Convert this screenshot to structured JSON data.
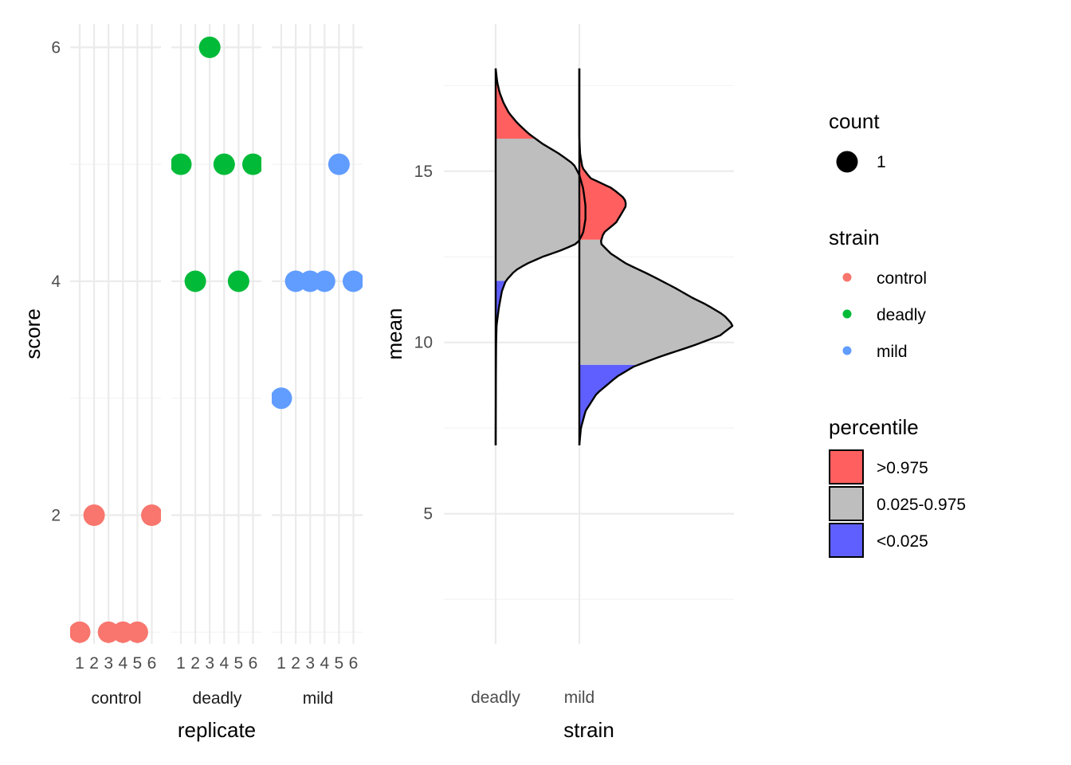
{
  "chart_data": [
    {
      "type": "scatter",
      "xlabel": "replicate",
      "ylabel": "score",
      "facets": [
        "control",
        "deadly",
        "mild"
      ],
      "x_ticks": [
        "1",
        "2",
        "3",
        "4",
        "5",
        "6"
      ],
      "y_ticks": [
        "2",
        "4",
        "6"
      ],
      "ylim": [
        0.9,
        6.2
      ],
      "points": [
        {
          "facet": "control",
          "x": 1,
          "y": 1,
          "strain": "control"
        },
        {
          "facet": "control",
          "x": 2,
          "y": 2,
          "strain": "control"
        },
        {
          "facet": "control",
          "x": 3,
          "y": 1,
          "strain": "control"
        },
        {
          "facet": "control",
          "x": 4,
          "y": 1,
          "strain": "control"
        },
        {
          "facet": "control",
          "x": 5,
          "y": 1,
          "strain": "control"
        },
        {
          "facet": "control",
          "x": 6,
          "y": 2,
          "strain": "control"
        },
        {
          "facet": "deadly",
          "x": 1,
          "y": 5,
          "strain": "deadly"
        },
        {
          "facet": "deadly",
          "x": 2,
          "y": 4,
          "strain": "deadly"
        },
        {
          "facet": "deadly",
          "x": 3,
          "y": 6,
          "strain": "deadly"
        },
        {
          "facet": "deadly",
          "x": 4,
          "y": 5,
          "strain": "deadly"
        },
        {
          "facet": "deadly",
          "x": 5,
          "y": 4,
          "strain": "deadly"
        },
        {
          "facet": "deadly",
          "x": 6,
          "y": 5,
          "strain": "deadly"
        },
        {
          "facet": "mild",
          "x": 1,
          "y": 3,
          "strain": "mild"
        },
        {
          "facet": "mild",
          "x": 2,
          "y": 4,
          "strain": "mild"
        },
        {
          "facet": "mild",
          "x": 3,
          "y": 4,
          "strain": "mild"
        },
        {
          "facet": "mild",
          "x": 4,
          "y": 4,
          "strain": "mild"
        },
        {
          "facet": "mild",
          "x": 5,
          "y": 5,
          "strain": "mild"
        },
        {
          "facet": "mild",
          "x": 6,
          "y": 4,
          "strain": "mild"
        }
      ]
    },
    {
      "type": "area",
      "subtype": "half-violin",
      "xlabel": "strain",
      "ylabel": "mean",
      "categories": [
        "deadly",
        "mild"
      ],
      "y_ticks": [
        "5",
        "10",
        "15"
      ],
      "ylim": [
        1.2,
        19.3
      ],
      "density": {
        "deadly": [
          [
            7.0,
            0
          ],
          [
            9.0,
            0.003
          ],
          [
            10.0,
            0.006
          ],
          [
            10.5,
            0.012
          ],
          [
            11.0,
            0.04
          ],
          [
            11.5,
            0.08
          ],
          [
            11.8,
            0.13
          ],
          [
            12.1,
            0.25
          ],
          [
            12.3,
            0.4
          ],
          [
            12.5,
            0.6
          ],
          [
            12.7,
            0.85
          ],
          [
            12.9,
            1.05
          ],
          [
            13.2,
            1.12
          ],
          [
            13.6,
            1.15
          ],
          [
            14.0,
            1.15
          ],
          [
            14.5,
            1.12
          ],
          [
            14.9,
            1.07
          ],
          [
            15.2,
            1.0
          ],
          [
            15.5,
            0.82
          ],
          [
            15.8,
            0.6
          ],
          [
            16.1,
            0.42
          ],
          [
            16.4,
            0.28
          ],
          [
            16.7,
            0.17
          ],
          [
            17.0,
            0.1
          ],
          [
            17.3,
            0.05
          ],
          [
            17.6,
            0.02
          ],
          [
            18.0,
            0
          ]
        ],
        "mild": [
          [
            7.0,
            0
          ],
          [
            7.5,
            0.02
          ],
          [
            8.0,
            0.08
          ],
          [
            8.5,
            0.22
          ],
          [
            9.0,
            0.48
          ],
          [
            9.3,
            0.7
          ],
          [
            9.6,
            1.05
          ],
          [
            9.9,
            1.45
          ],
          [
            10.2,
            1.8
          ],
          [
            10.5,
            1.97
          ],
          [
            10.8,
            1.85
          ],
          [
            11.1,
            1.63
          ],
          [
            11.3,
            1.45
          ],
          [
            11.6,
            1.22
          ],
          [
            12.0,
            0.88
          ],
          [
            12.3,
            0.6
          ],
          [
            12.6,
            0.4
          ],
          [
            12.9,
            0.27
          ],
          [
            13.2,
            0.31
          ],
          [
            13.5,
            0.47
          ],
          [
            13.8,
            0.55
          ],
          [
            14.0,
            0.6
          ],
          [
            14.2,
            0.58
          ],
          [
            14.5,
            0.42
          ],
          [
            14.8,
            0.14
          ],
          [
            15.1,
            0.04
          ],
          [
            15.5,
            0.01
          ],
          [
            16.0,
            0
          ],
          [
            18.0,
            0
          ]
        ]
      },
      "percentile_bands": {
        "deadly": {
          "low": 11.8,
          "high": 15.95
        },
        "mild": {
          "low": 9.35,
          "high": 13.0
        }
      }
    }
  ],
  "legend": {
    "count": {
      "title": "count",
      "entries": [
        "1"
      ]
    },
    "strain": {
      "title": "strain",
      "entries": [
        {
          "label": "control",
          "color": "#F8766D"
        },
        {
          "label": "deadly",
          "color": "#00BA38"
        },
        {
          "label": "mild",
          "color": "#619CFF"
        }
      ]
    },
    "percentile": {
      "title": "percentile",
      "entries": [
        {
          "label": ">0.975",
          "color": "#FF5F5F"
        },
        {
          "label": "0.025-0.975",
          "color": "#BEBEBE"
        },
        {
          "label": "<0.025",
          "color": "#5F5FFF"
        }
      ]
    }
  }
}
